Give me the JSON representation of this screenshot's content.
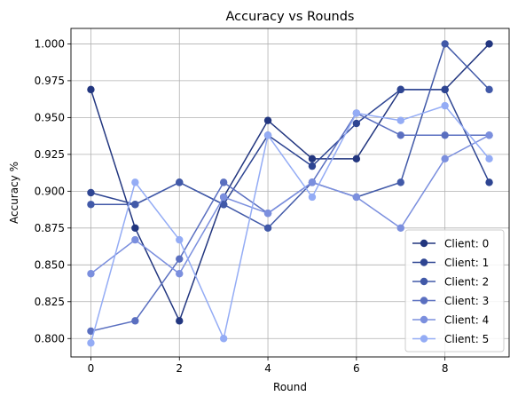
{
  "chart_data": {
    "type": "line",
    "title": "Accuracy vs Rounds",
    "xlabel": "Round",
    "ylabel": "Accuracy %",
    "xlim": [
      -0.45,
      9.45
    ],
    "ylim": [
      0.7875,
      1.0105
    ],
    "xticks": [
      0,
      2,
      4,
      6,
      8
    ],
    "yticks": [
      0.8,
      0.825,
      0.85,
      0.875,
      0.9,
      0.925,
      0.95,
      0.975,
      1.0
    ],
    "ytick_labels": [
      "0.800",
      "0.825",
      "0.850",
      "0.875",
      "0.900",
      "0.925",
      "0.950",
      "0.975",
      "1.000"
    ],
    "grid": true,
    "legend_position": "lower-right",
    "x": [
      0,
      1,
      2,
      3,
      4,
      5,
      6,
      7,
      8,
      9
    ],
    "series": [
      {
        "name": "Client: 0",
        "color": "#22367f",
        "values": [
          0.969,
          0.875,
          0.812,
          0.896,
          0.948,
          0.922,
          0.922,
          0.969,
          0.969,
          1.0
        ]
      },
      {
        "name": "Client: 1",
        "color": "#2e4592",
        "values": [
          0.899,
          0.891,
          0.906,
          0.891,
          0.938,
          0.917,
          0.946,
          0.969,
          0.969,
          0.906
        ]
      },
      {
        "name": "Client: 2",
        "color": "#4159a8",
        "values": [
          0.891,
          0.891,
          0.906,
          0.891,
          0.875,
          0.906,
          0.896,
          0.906,
          1.0,
          0.969
        ]
      },
      {
        "name": "Client: 3",
        "color": "#5a6fc0",
        "values": [
          0.805,
          0.812,
          0.854,
          0.906,
          0.885,
          0.906,
          0.953,
          0.938,
          0.938,
          0.938
        ]
      },
      {
        "name": "Client: 4",
        "color": "#7b8fde",
        "values": [
          0.844,
          0.867,
          0.844,
          0.896,
          0.885,
          0.906,
          0.896,
          0.875,
          0.922,
          0.938
        ]
      },
      {
        "name": "Client: 5",
        "color": "#94acf5",
        "values": [
          0.797,
          0.906,
          0.867,
          0.8,
          0.938,
          0.896,
          0.953,
          0.948,
          0.958,
          0.922
        ]
      }
    ]
  }
}
